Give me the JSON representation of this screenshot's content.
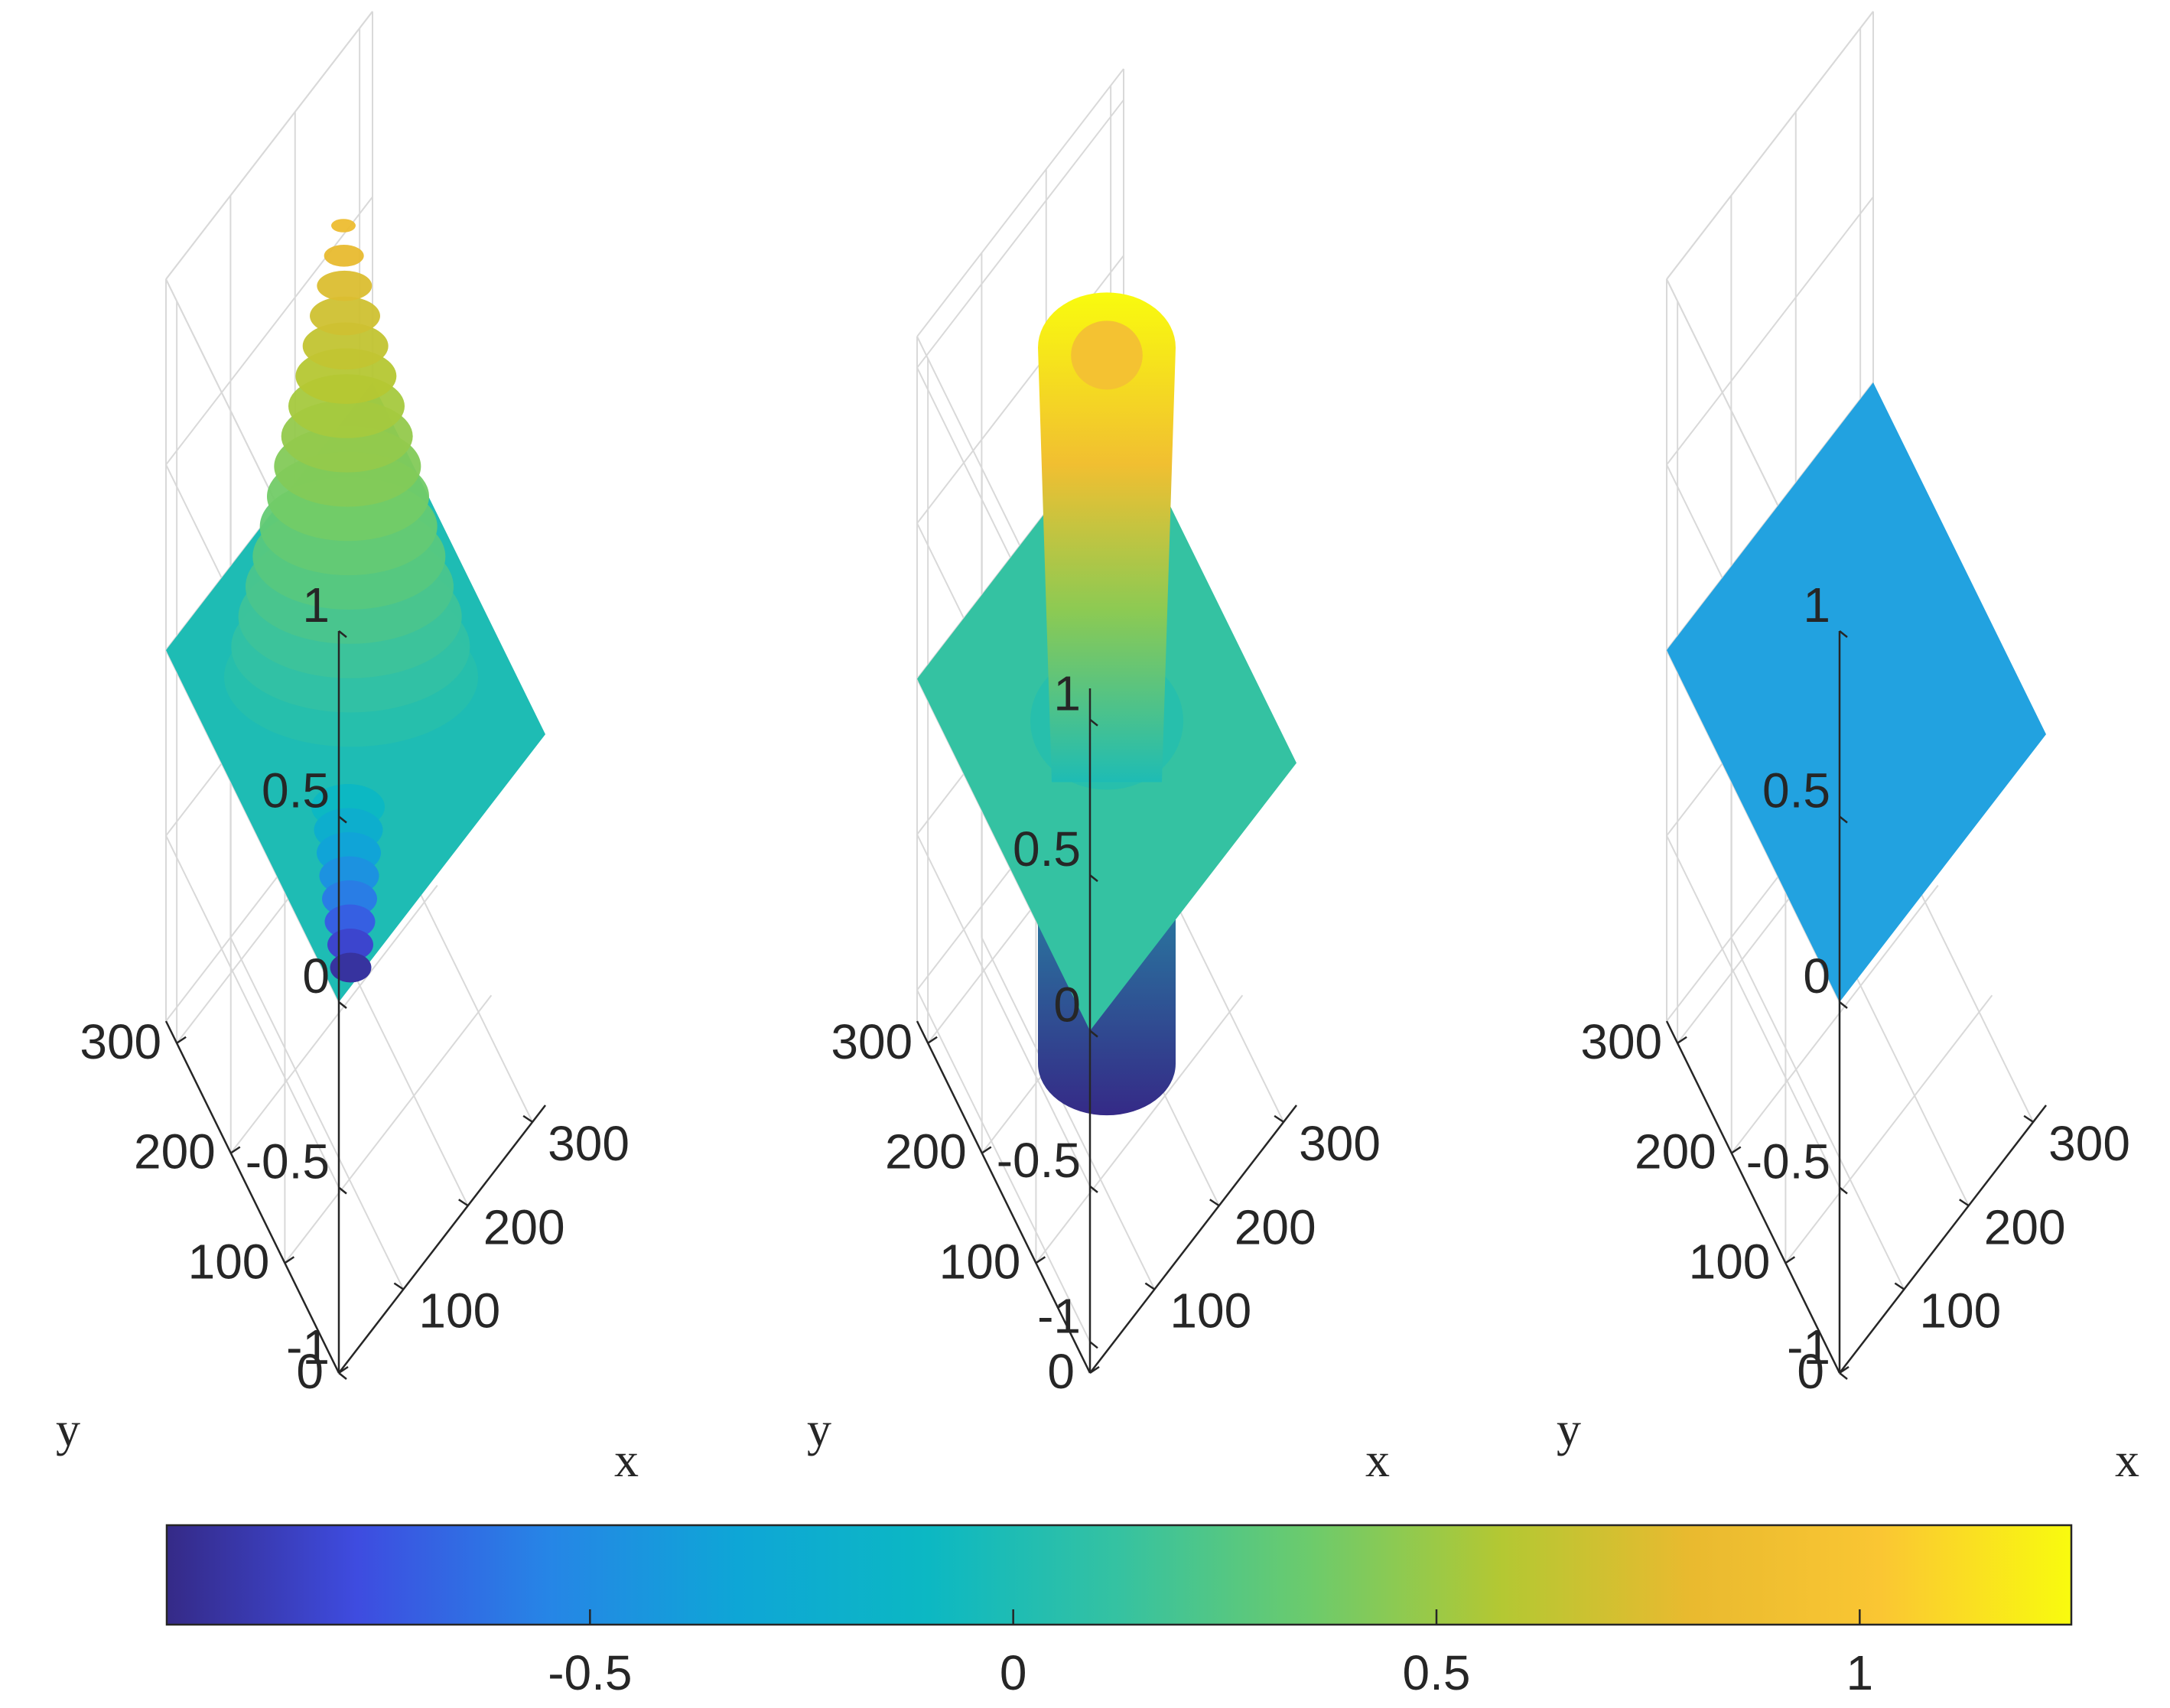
{
  "chart_data": [
    {
      "type": "surface3d",
      "title": "",
      "xlabel": "x",
      "ylabel": "y",
      "zlabel": "",
      "xlim": [
        0,
        320
      ],
      "ylim": [
        0,
        320
      ],
      "zlim": [
        -1,
        1
      ],
      "x_ticks": [
        100,
        200,
        300
      ],
      "y_ticks": [
        0,
        100,
        200,
        300
      ],
      "z_ticks": [
        -1,
        -0.5,
        0,
        0.5,
        1
      ],
      "x_tick_labels": [
        "100",
        "200",
        "300"
      ],
      "y_tick_labels": [
        "0",
        "100",
        "200",
        "300"
      ],
      "z_tick_labels": [
        "-1",
        "-0.5",
        "0",
        "0.5",
        "1"
      ],
      "surface": {
        "description": "Damped concentric ripples centered in the xy-plane over a flat z=0 sheet",
        "baseline_z": 0,
        "peak_z": 0.85,
        "trough_z": -1.05,
        "center": [
          160,
          160
        ]
      }
    },
    {
      "type": "surface3d",
      "title": "",
      "xlabel": "x",
      "ylabel": "y",
      "zlabel": "",
      "xlim": [
        0,
        320
      ],
      "ylim": [
        0,
        320
      ],
      "zlim": [
        -1.2,
        1.2
      ],
      "x_ticks": [
        100,
        200,
        300
      ],
      "y_ticks": [
        0,
        100,
        200,
        300
      ],
      "z_ticks": [
        -1,
        -0.5,
        0,
        0.5,
        1
      ],
      "x_tick_labels": [
        "100",
        "200",
        "300"
      ],
      "y_tick_labels": [
        "0",
        "100",
        "200",
        "300"
      ],
      "z_tick_labels": [
        "-1",
        "-0.5",
        "0",
        "0.5",
        "1"
      ],
      "surface": {
        "description": "Vertical cylindrical column centered in the xy-plane through a flat z=0 sheet",
        "baseline_z": 0,
        "top_z": 1.2,
        "bottom_z": -1.2,
        "center": [
          160,
          160
        ]
      }
    },
    {
      "type": "surface3d",
      "title": "",
      "xlabel": "x",
      "ylabel": "y",
      "zlabel": "",
      "xlim": [
        0,
        320
      ],
      "ylim": [
        0,
        320
      ],
      "zlim": [
        -1,
        1
      ],
      "x_ticks": [
        100,
        200,
        300
      ],
      "y_ticks": [
        0,
        100,
        200,
        300
      ],
      "z_ticks": [
        -1,
        -0.5,
        0,
        0.5,
        1
      ],
      "x_tick_labels": [
        "100",
        "200",
        "300"
      ],
      "y_tick_labels": [
        "0",
        "100",
        "200",
        "300"
      ],
      "z_tick_labels": [
        "-1",
        "-0.5",
        "0",
        "0.5",
        "1"
      ],
      "surface": {
        "description": "Flat plane at z=0",
        "baseline_z": 0
      }
    },
    {
      "type": "colorbar",
      "orientation": "horizontal",
      "placement": "bottom",
      "colormap": "parula",
      "clim": [
        -1,
        1.25
      ],
      "ticks": [
        -0.5,
        0,
        0.5,
        1
      ],
      "tick_labels": [
        "-0.5",
        "0",
        "0.5",
        "1"
      ]
    }
  ],
  "colors": {
    "parula_stops": [
      "#352a87",
      "#3e4ce0",
      "#2685e6",
      "#0ea6d6",
      "#0cb8c3",
      "#35c2a1",
      "#6ccb6c",
      "#b3c833",
      "#e9ba2f",
      "#fac633",
      "#f9fb0e"
    ],
    "grid": "#d9d9d9",
    "axis": "#262626",
    "flat_plane": "#22a2e0"
  }
}
